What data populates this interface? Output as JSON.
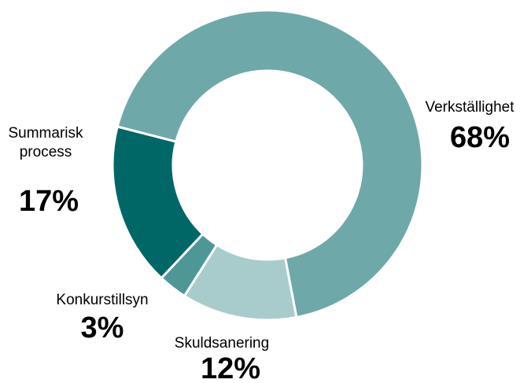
{
  "chart_data": {
    "type": "donut",
    "categories": [
      "Verkställighet",
      "Skuldsanering",
      "Konkurstillsyn",
      "Summarisk\nprocess"
    ],
    "values": [
      68,
      12,
      3,
      17
    ],
    "value_labels": [
      "68%",
      "12%",
      "3%",
      "17%"
    ],
    "colors": [
      "#6fa8a9",
      "#a8cccc",
      "#4e9797",
      "#006767"
    ]
  }
}
